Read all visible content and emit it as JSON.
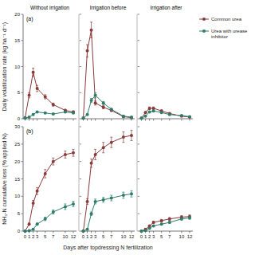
{
  "chart_data": [
    {
      "type": "line",
      "title": "Without irrigation",
      "ylabel": "Daily volatilization rate (kg ha⁻¹ d⁻¹)",
      "annotations": [
        "(a)"
      ],
      "x": [
        0,
        1,
        2,
        3,
        5,
        7,
        10,
        12
      ],
      "xlim": [
        -0.5,
        12.8
      ],
      "xticks": [
        0,
        1,
        2,
        3,
        5,
        7,
        10,
        12
      ],
      "ylim": [
        0,
        20
      ],
      "yticks": [
        0,
        5,
        10,
        15,
        20
      ],
      "tick_labels": "y",
      "series": [
        {
          "name": "Common urea",
          "color": "#8B3A3A",
          "values": [
            0.2,
            4.5,
            8.9,
            5.8,
            4.2,
            2.7,
            1.6,
            1.3
          ],
          "errors": [
            0.1,
            0.5,
            0.8,
            0.6,
            0.4,
            0.3,
            0.2,
            0.2
          ]
        },
        {
          "name": "Urea with urease\ninhibitor",
          "color": "#2E7D6B",
          "values": [
            0.1,
            0.3,
            0.8,
            1.3,
            1.1,
            0.9,
            1.3,
            1.1
          ],
          "errors": [
            0.05,
            0.05,
            0.1,
            0.15,
            0.1,
            0.1,
            0.12,
            0.1
          ]
        }
      ]
    },
    {
      "type": "line",
      "title": "Irrigation before",
      "x": [
        0,
        1,
        2,
        3,
        5,
        7,
        10,
        12
      ],
      "xlim": [
        -0.5,
        12.8
      ],
      "xticks": [
        0,
        1,
        2,
        3,
        5,
        7,
        10,
        12
      ],
      "ylim": [
        0,
        20
      ],
      "yticks": [
        0,
        5,
        10,
        15,
        20
      ],
      "tick_labels": false,
      "series": [
        {
          "color": "#8B3A3A",
          "values": [
            0.1,
            13.0,
            17.0,
            3.0,
            2.2,
            1.6,
            0.4,
            0.2
          ],
          "errors": [
            0.05,
            1.2,
            1.5,
            0.4,
            0.3,
            0.2,
            0.06,
            0.04
          ]
        },
        {
          "color": "#2E7D6B",
          "values": [
            0.1,
            0.8,
            3.5,
            4.5,
            3.0,
            1.8,
            0.5,
            0.3
          ],
          "errors": [
            0.05,
            0.1,
            0.4,
            0.5,
            0.3,
            0.2,
            0.07,
            0.05
          ]
        }
      ]
    },
    {
      "type": "line",
      "title": "Irrigation after",
      "x": [
        0,
        1,
        2,
        3,
        5,
        7,
        10,
        12
      ],
      "xlim": [
        -0.5,
        12.8
      ],
      "xticks": [
        0,
        1,
        2,
        3,
        5,
        7,
        10,
        12
      ],
      "ylim": [
        0,
        20
      ],
      "yticks": [
        0,
        5,
        10,
        15,
        20
      ],
      "tick_labels": false,
      "series": [
        {
          "color": "#8B3A3A",
          "values": [
            0.1,
            1.2,
            2.0,
            2.0,
            1.5,
            1.0,
            0.5,
            0.3
          ],
          "errors": [
            0.05,
            0.15,
            0.25,
            0.25,
            0.2,
            0.15,
            0.08,
            0.05
          ]
        },
        {
          "color": "#2E7D6B",
          "values": [
            0.1,
            0.5,
            1.3,
            1.5,
            1.2,
            0.8,
            0.6,
            0.4
          ],
          "errors": [
            0.05,
            0.07,
            0.15,
            0.18,
            0.14,
            0.1,
            0.08,
            0.06
          ]
        }
      ]
    },
    {
      "type": "line",
      "ylabel": "NH₃-N cumulative loss (% applied N)",
      "annotations": [
        "(b)"
      ],
      "x": [
        0,
        1,
        2,
        3,
        5,
        7,
        10,
        12
      ],
      "xlim": [
        -0.5,
        12.8
      ],
      "xticks": [
        0,
        1,
        2,
        3,
        5,
        7,
        10,
        12
      ],
      "ylim": [
        0,
        30
      ],
      "yticks": [
        0,
        5,
        10,
        15,
        20,
        25,
        30
      ],
      "series": [
        {
          "color": "#8B3A3A",
          "values": [
            0.0,
            2.0,
            8.0,
            11.5,
            16.5,
            20.0,
            22.0,
            22.5
          ],
          "errors": [
            0.0,
            0.3,
            0.8,
            1.0,
            1.2,
            1.0,
            1.0,
            1.0
          ]
        },
        {
          "color": "#2E7D6B",
          "values": [
            0.0,
            0.1,
            0.5,
            2.0,
            3.5,
            5.5,
            7.0,
            7.8
          ],
          "errors": [
            0.0,
            0.05,
            0.1,
            0.3,
            0.5,
            0.6,
            0.8,
            0.8
          ]
        }
      ]
    },
    {
      "type": "line",
      "xlabel": "Days after topdressing N fertilization",
      "x": [
        0,
        1,
        2,
        3,
        5,
        7,
        10,
        12
      ],
      "xlim": [
        -0.5,
        12.8
      ],
      "xticks": [
        0,
        1,
        2,
        3,
        5,
        7,
        10,
        12
      ],
      "ylim": [
        0,
        30
      ],
      "yticks": [
        0,
        5,
        10,
        15,
        20,
        25,
        30
      ],
      "tick_labels": "x",
      "series": [
        {
          "color": "#8B3A3A",
          "values": [
            0.0,
            8.5,
            19.5,
            22.0,
            24.0,
            25.5,
            27.0,
            27.5
          ],
          "errors": [
            0.0,
            0.8,
            1.2,
            1.5,
            1.5,
            1.5,
            1.5,
            1.5
          ]
        },
        {
          "color": "#2E7D6B",
          "values": [
            0.0,
            0.5,
            5.0,
            8.5,
            9.0,
            9.5,
            10.3,
            10.7
          ],
          "errors": [
            0.0,
            0.1,
            0.5,
            0.7,
            0.7,
            0.8,
            0.9,
            0.9
          ]
        }
      ]
    },
    {
      "type": "line",
      "x": [
        0,
        1,
        2,
        3,
        5,
        7,
        10,
        12
      ],
      "xlim": [
        -0.5,
        12.8
      ],
      "xticks": [
        0,
        1,
        2,
        3,
        5,
        7,
        10,
        12
      ],
      "ylim": [
        0,
        30
      ],
      "yticks": [
        0,
        5,
        10,
        15,
        20,
        25,
        30
      ],
      "tick_labels": "x",
      "series": [
        {
          "color": "#8B3A3A",
          "values": [
            0.0,
            0.5,
            1.5,
            2.5,
            3.0,
            3.5,
            4.0,
            4.2
          ],
          "errors": [
            0.0,
            0.08,
            0.2,
            0.3,
            0.35,
            0.4,
            0.45,
            0.45
          ]
        },
        {
          "color": "#2E7D6B",
          "values": [
            0.0,
            0.2,
            0.8,
            1.5,
            2.0,
            2.5,
            3.5,
            3.8
          ],
          "errors": [
            0.0,
            0.05,
            0.1,
            0.18,
            0.22,
            0.28,
            0.35,
            0.38
          ]
        }
      ]
    }
  ]
}
